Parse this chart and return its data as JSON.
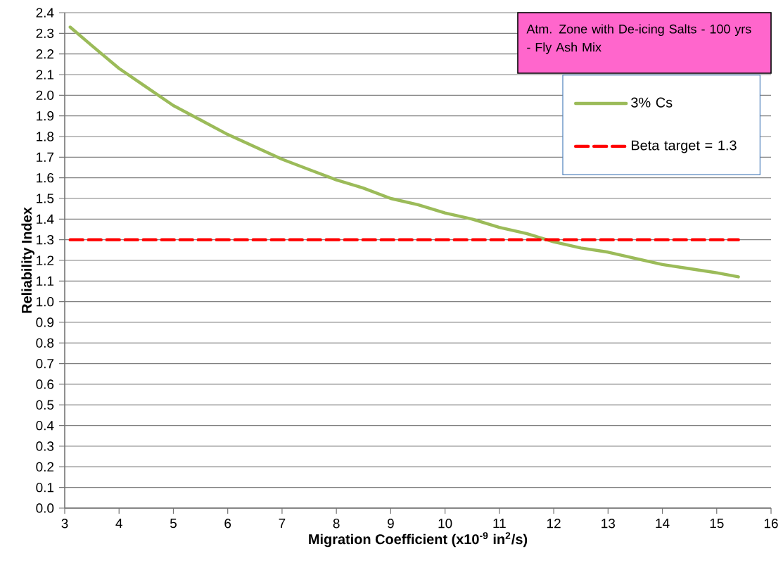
{
  "chart_data": {
    "type": "line",
    "title": "Atm. Zone with De-icing Salts - 100 yrs - Fly Ash Mix",
    "xlabel": "Migration Coefficient (x10$^{-9}$ in$^{2}$/s)",
    "ylabel": "Reliability Index",
    "series": [
      {
        "name": "3% Cs",
        "color": "#9bbb59",
        "line_style": "solid",
        "x": [
          3.1,
          3.5,
          4,
          4.5,
          5,
          5.5,
          6,
          6.5,
          7,
          7.5,
          8,
          8.5,
          9,
          9.5,
          10,
          10.5,
          11,
          11.5,
          12,
          12.5,
          13,
          13.5,
          14,
          14.5,
          15,
          15.4
        ],
        "values": [
          2.33,
          2.24,
          2.13,
          2.04,
          1.95,
          1.88,
          1.81,
          1.75,
          1.69,
          1.64,
          1.59,
          1.55,
          1.5,
          1.47,
          1.43,
          1.4,
          1.36,
          1.33,
          1.29,
          1.26,
          1.24,
          1.21,
          1.18,
          1.16,
          1.14,
          1.12
        ]
      },
      {
        "name": "Beta target = 1.3",
        "color": "#ff0000",
        "line_style": "dashed",
        "x": [
          3.1,
          15.4
        ],
        "values": [
          1.3,
          1.3
        ]
      }
    ],
    "xlim": [
      3,
      16
    ],
    "xticks": [
      3,
      4,
      5,
      6,
      7,
      8,
      9,
      10,
      11,
      12,
      13,
      14,
      15,
      16
    ],
    "ylim": [
      0,
      2.4
    ],
    "yticks": [
      {
        "value": 0,
        "label": "0.0"
      },
      {
        "value": 0.1,
        "label": "0.1"
      },
      {
        "value": 0.2,
        "label": "0.2"
      },
      {
        "value": 0.3,
        "label": "0.3"
      },
      {
        "value": 0.4,
        "label": "0.4"
      },
      {
        "value": 0.5,
        "label": "0.5"
      },
      {
        "value": 0.6,
        "label": "0.6"
      },
      {
        "value": 0.7,
        "label": "0.7"
      },
      {
        "value": 0.8,
        "label": "0.8"
      },
      {
        "value": 0.9,
        "label": "0.9"
      },
      {
        "value": 1.0,
        "label": "1.0"
      },
      {
        "value": 1.1,
        "label": "1.1"
      },
      {
        "value": 1.2,
        "label": "1.2"
      },
      {
        "value": 1.3,
        "label": "1.3"
      },
      {
        "value": 1.4,
        "label": "1.4"
      },
      {
        "value": 1.5,
        "label": "1.5"
      },
      {
        "value": 1.6,
        "label": "1.6"
      },
      {
        "value": 1.7,
        "label": "1.7"
      },
      {
        "value": 1.8,
        "label": "1.8"
      },
      {
        "value": 1.9,
        "label": "1.9"
      },
      {
        "value": 2.0,
        "label": "2.0"
      },
      {
        "value": 2.1,
        "label": "2.1"
      },
      {
        "value": 2.2,
        "label": "2.2"
      },
      {
        "value": 2.3,
        "label": "2.3"
      },
      {
        "value": 2.4,
        "label": "2.4"
      }
    ],
    "grid": "y",
    "legend": "top right",
    "marker": "none"
  }
}
